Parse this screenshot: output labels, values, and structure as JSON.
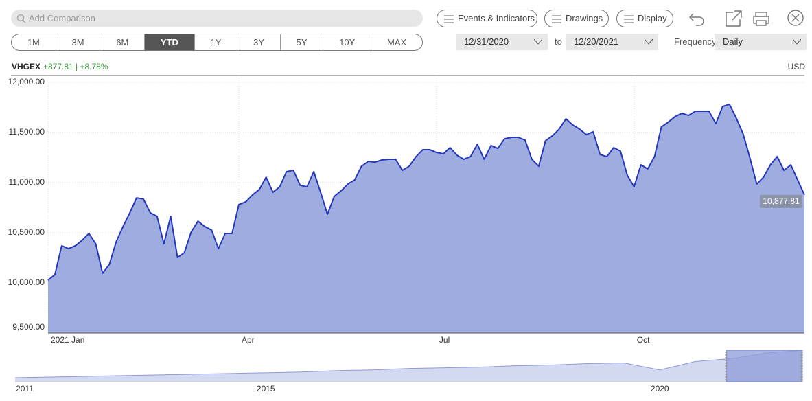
{
  "toolbar": {
    "search_placeholder": "Add Comparison",
    "buttons": [
      "Events & Indicators",
      "Drawings",
      "Display"
    ],
    "ranges": [
      "1M",
      "3M",
      "6M",
      "YTD",
      "1Y",
      "3Y",
      "5Y",
      "10Y",
      "MAX"
    ],
    "start_date": "12/31/2020",
    "to": "to",
    "end_date": "12/20/2021",
    "frequency_label": "Frequency",
    "frequency": "Daily"
  },
  "quote": {
    "symbol": "VHGEX",
    "change": "+877.81 | +8.78%",
    "currency": "USD"
  },
  "chart_data": [
    {
      "type": "area",
      "categories": [
        "2021 Jan",
        null,
        null,
        null,
        null,
        null,
        null,
        null,
        null,
        null,
        null,
        null,
        null,
        null,
        null,
        null,
        null,
        null,
        null,
        null,
        null,
        null,
        null,
        null,
        null,
        null,
        null,
        null,
        "Apr",
        null,
        null,
        null,
        null,
        null,
        null,
        null,
        null,
        null,
        null,
        null,
        null,
        null,
        null,
        null,
        null,
        null,
        null,
        null,
        null,
        null,
        null,
        null,
        null,
        null,
        null,
        null,
        null,
        "Jul",
        null,
        null,
        null,
        null,
        null,
        null,
        null,
        null,
        null,
        null,
        null,
        null,
        null,
        null,
        null,
        null,
        null,
        null,
        null,
        null,
        null,
        null,
        null,
        null,
        null,
        null,
        null,
        null,
        "Oct",
        null,
        null,
        null,
        null,
        null,
        null,
        null,
        null,
        null,
        null,
        null,
        null,
        null,
        null,
        null,
        null,
        null,
        null,
        null,
        null,
        null,
        null,
        null,
        null,
        null
      ],
      "values": [
        10027,
        10082,
        10370,
        10342,
        10370,
        10425,
        10493,
        10390,
        10096,
        10185,
        10411,
        10562,
        10699,
        10849,
        10836,
        10699,
        10664,
        10390,
        10664,
        10253,
        10301,
        10507,
        10616,
        10562,
        10527,
        10342,
        10493,
        10493,
        10781,
        10808,
        10877,
        10932,
        11055,
        10904,
        10959,
        11110,
        11123,
        10973,
        10959,
        11110,
        10904,
        10685,
        10863,
        10918,
        10986,
        11027,
        11164,
        11212,
        11205,
        11226,
        11233,
        11233,
        11123,
        11164,
        11260,
        11329,
        11329,
        11301,
        11288,
        11349,
        11274,
        11233,
        11260,
        11384,
        11233,
        11370,
        11342,
        11438,
        11452,
        11452,
        11425,
        11233,
        11164,
        11418,
        11466,
        11534,
        11637,
        11575,
        11534,
        11479,
        11507,
        11281,
        11260,
        11349,
        11315,
        11075,
        10959,
        11178,
        11137,
        11260,
        11555,
        11603,
        11658,
        11692,
        11671,
        11712,
        11712,
        11712,
        11589,
        11760,
        11781,
        11644,
        11486,
        11247,
        10986,
        11055,
        11178,
        11260,
        11123,
        11178,
        11027,
        10877.81
      ],
      "value_labels": [
        null,
        null,
        null,
        null,
        null,
        null,
        null,
        null,
        null,
        null,
        null,
        null,
        null,
        null,
        null,
        null,
        null,
        null,
        null,
        null,
        null,
        null,
        null,
        null,
        null,
        null,
        null,
        null,
        null,
        null,
        null,
        null,
        null,
        null,
        null,
        null,
        null,
        null,
        null,
        null,
        null,
        null,
        null,
        null,
        null,
        null,
        null,
        null,
        null,
        null,
        null,
        null,
        null,
        null,
        null,
        null,
        null,
        null,
        null,
        null,
        null,
        null,
        null,
        null,
        null,
        null,
        null,
        null,
        null,
        null,
        null,
        null,
        null,
        null,
        null,
        null,
        null,
        null,
        null,
        null,
        null,
        null,
        null,
        null,
        null,
        null,
        null,
        null,
        null,
        null,
        null,
        null,
        null,
        null,
        null,
        null,
        null,
        null,
        null,
        null,
        null,
        null,
        null,
        null,
        null,
        null,
        null,
        null,
        null,
        null,
        null,
        "10,877.81"
      ],
      "color": "#2437b8",
      "fill": "#9eacdf",
      "ylim": [
        9500,
        12000
      ],
      "yticks": [
        {
          "value": 9500,
          "label": "9,500.00"
        },
        {
          "value": 10000,
          "label": "10,000.00"
        },
        {
          "value": 10500,
          "label": "10,500.00"
        },
        {
          "value": 11000,
          "label": "11,000.00"
        },
        {
          "value": 11500,
          "label": "11,500.00"
        },
        {
          "value": 12000,
          "label": "12,000.00"
        }
      ],
      "grid": true
    },
    {
      "type": "area",
      "categories": [
        "2011",
        null,
        null,
        null,
        null,
        null,
        null,
        "2015",
        null,
        null,
        null,
        null,
        null,
        null,
        null,
        null,
        null,
        null,
        "2020",
        null,
        null,
        null,
        null
      ],
      "values": [
        4000,
        4200,
        4400,
        4600,
        4800,
        5000,
        5200,
        5400,
        5600,
        6000,
        6200,
        6600,
        6800,
        7000,
        7400,
        7600,
        8000,
        8200,
        6200,
        8600,
        9400,
        11000,
        11800
      ],
      "color": "#8e9ad6",
      "fill": "#d3d9f1"
    }
  ]
}
